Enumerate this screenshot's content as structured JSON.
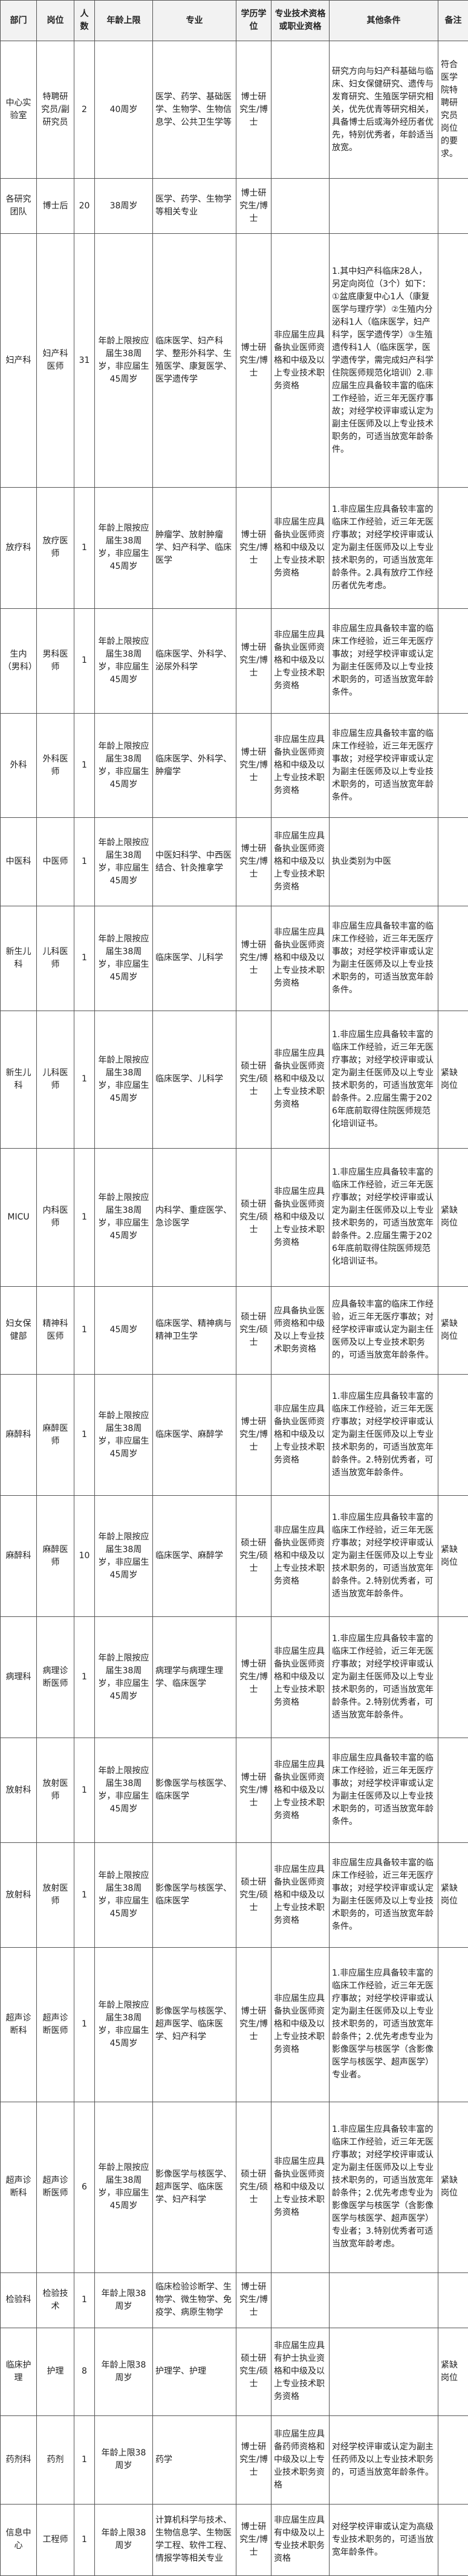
{
  "table": {
    "headers": [
      "部门",
      "岗位",
      "人数",
      "年龄上限",
      "专业",
      "学历学位",
      "专业技术资格或职业资格",
      "其他条件",
      "备注"
    ],
    "rows": [
      [
        "中心实验室",
        "特聘研究员/副研究员",
        "2",
        "40周岁",
        "医学、药学、基础医学、生物学、生物信息学、公共卫生学等",
        "博士研究生/博士",
        null,
        "研究方向与妇产科基础与临床、妇女保健研究、遗传与发育研究、生殖医学研究相关，优先优青等研究相关，具备博士后或海外经历者优先，特别优秀者，年龄适当放宽。",
        "符合医学院特聘研究员岗位的要求。"
      ],
      [
        "各研究团队",
        "博士后",
        "20",
        "38周岁",
        "医学、药学、生物学等相关专业",
        "博士研究生/博士",
        null,
        null,
        null
      ],
      [
        "妇产科",
        "妇产科医师",
        "31",
        "年龄上限按应届生38周岁，非应届生45周岁",
        "临床医学、妇产科学、整形外科学、生殖医学、康复医学、医学遗传学",
        "博士研究生/博士",
        "非应届生应具备执业医师资格和中级及以上专业技术职务资格",
        "1.其中妇产科临床28人，另定向岗位（3个）如下：①盆底康复中心1人（康复医学与理疗学）②生殖内分泌科1人（临床医学，妇产科学，医学遗传学）③生殖遗传科1人（临床医学，医学遗传学，需完成妇产科学住院医师规范化培训）2.非应届生应具备较丰富的临床工作经验，近三年无医疗事故；对经学校评审或认定为副主任医师及以上专业技术职务的，可适当放宽年龄条件。",
        null
      ],
      [
        "放疗科",
        "放疗医师",
        "1",
        "年龄上限按应届生38周岁，非应届生45周岁",
        "肿瘤学、放射肿瘤学、妇产科学、临床医学",
        "博士研究生/博士",
        "非应届生应具备执业医师资格和中级及以上专业技术职务资格",
        "1.非应届生应具备较丰富的临床工作经验，近三年无医疗事故；对经学校评审或认定为副主任医师及以上专业技术职务的，可适当放宽年龄条件。2.具有放疗工作经历者优先考虑。",
        null
      ],
      [
        "生内（男科）",
        "男科医师",
        "1",
        "年龄上限按应届生38周岁，非应届生45周岁",
        "临床医学、外科学、泌尿外科学",
        "博士研究生/博士",
        "非应届生应具备执业医师资格和中级及以上专业技术职务资格",
        "非应届生应具备较丰富的临床工作经验，近三年无医疗事故；对经学校评审或认定为副主任医师及以上专业技术职务的，可适当放宽年龄条件。",
        null
      ],
      [
        "外科",
        "外科医师",
        "1",
        "年龄上限按应届生38周岁，非应届生45周岁",
        "临床医学、外科学、肿瘤学",
        "博士研究生/博士",
        "非应届生应具备执业医师资格和中级及以上专业技术职务资格",
        "非应届生应具备较丰富的临床工作经验，近三年无医疗事故；对经学校评审或认定为副主任医师及以上专业技术职务的，可适当放宽年龄条件。",
        null
      ],
      [
        "中医科",
        "中医师",
        "1",
        "年龄上限按应届生38周岁，非应届生45周岁",
        "中医妇科学、中西医结合、针灸推拿学",
        "博士研究生/博士",
        "非应届生应具备执业医师资格和中级及以上专业技术职务资格",
        "执业类别为中医",
        null
      ],
      [
        "新生儿科",
        "儿科医师",
        "1",
        "年龄上限按应届生38周岁，非应届生45周岁",
        "临床医学、儿科学",
        "博士研究生/博士",
        "非应届生应具备执业医师资格和中级及以上专业技术职务资格",
        "非应届生应具备较丰富的临床工作经验，近三年无医疗事故；对经学校评审或认定为副主任医师及以上专业技术职务的，可适当放宽年龄条件。",
        null
      ],
      [
        "新生儿科",
        "儿科医师",
        "1",
        "年龄上限按应届生38周岁，非应届生45周岁",
        "临床医学、儿科学",
        "硕士研究生/硕士",
        "非应届生应具备执业医师资格和中级及以上专业技术职务资格",
        "1.非应届生应具备较丰富的临床工作经验，近三年无医疗事故；对经学校评审或认定为副主任医师及以上专业技术职务的，可适当放宽年龄条件。2.应届生需于2026年底前取得住院医师规范化培训证书。",
        "紧缺岗位"
      ],
      [
        "MICU",
        "内科医师",
        "1",
        "年龄上限按应届生38周岁，非应届生45周岁",
        "内科学、重症医学、急诊医学",
        "硕士研究生/硕士",
        "非应届生应具备执业医师资格和中级及以上专业技术职务资格",
        "1.非应届生应具备较丰富的临床工作经验，近三年无医疗事故；对经学校评审或认定为副主任医师及以上专业技术职务的，可适当放宽年龄条件。2.应届生需于2026年底前取得住院医师规范化培训证书。",
        "紧缺岗位"
      ],
      [
        "妇女保健部",
        "精神科医师",
        "1",
        "45周岁",
        "临床医学、精神病与精神卫生学",
        "硕士研究生/硕士",
        "应具备执业医师资格和中级及以上专业技术职务资格",
        "应具备较丰富的临床工作经验，近三年无医疗事故；对经学校评审或认定为副主任医师及以上专业技术职务的，可适当放宽年龄条件。",
        "紧缺岗位"
      ],
      [
        "麻醉科",
        "麻醉医师",
        "1",
        "年龄上限按应届生38周岁，非应届生45周岁",
        "临床医学、麻醉学",
        "博士研究生/博士",
        "非应届生应具备执业医师资格和中级及以上专业技术职务资格",
        "1.非应届生应具备较丰富的临床工作经验，近三年无医疗事故；对经学校评审或认定为副主任医师及以上专业技术职务的，可适当放宽年龄条件。2.特别优秀者，可适当放宽年龄条件。",
        null
      ],
      [
        "麻醉科",
        "麻醉医师",
        "10",
        "年龄上限按应届生38周岁，非应届生45周岁",
        "临床医学、麻醉学",
        "硕士研究生/硕士",
        "非应届生应具备执业医师资格和中级及以上专业技术职务资格",
        "1.非应届生应具备较丰富的临床工作经验，近三年无医疗事故；对经学校评审或认定为副主任医师及以上专业技术职务的，可适当放宽年龄条件。2.特别优秀者，可适当放宽年龄条件。",
        "紧缺岗位"
      ],
      [
        "病理科",
        "病理诊断医师",
        "1",
        "年龄上限按应届生38周岁，非应届生45周岁",
        "病理学与病理生理学、临床医学",
        "博士研究生/博士",
        "非应届生应具备执业医师资格和中级及以上专业技术职务资格",
        "1.非应届生应具备较丰富的临床工作经验，近三年无医疗事故；对经学校评审或认定为副主任医师及以上专业技术职务的，可适当放宽年龄条件。2.特别优秀者，可适当放宽年龄条件。",
        null
      ],
      [
        "放射科",
        "放射医师",
        "1",
        "年龄上限按应届生38周岁，非应届生45周岁",
        "影像医学与核医学、临床医学",
        "博士研究生/博士",
        "非应届生应具备执业医师资格和中级及以上专业技术职务资格",
        "非应届生应具备较丰富的临床工作经验，近三年无医疗事故；对经学校评审或认定为副主任医师及以上专业技术职务的，可适当放宽年龄条件。",
        null
      ],
      [
        "放射科",
        "放射医师",
        "1",
        "年龄上限按应届生38周岁，非应届生45周岁",
        "影像医学与核医学、临床医学",
        "硕士研究生/硕士",
        "非应届生应具备执业医师资格和中级及以上专业技术职务资格",
        "非应届生应具备较丰富的临床工作经验，近三年无医疗事故；对经学校评审或认定为副主任医师及以上专业技术职务的，可适当放宽年龄条件。",
        "紧缺岗位"
      ],
      [
        "超声诊断科",
        "超声诊断医师",
        "1",
        "年龄上限按应届生38周岁，非应届生45周岁",
        "影像医学与核医学、超声医学、临床医学、妇产科学",
        "博士研究生/博士",
        "非应届生应具备执业医师资格和中级及以上专业技术职务资格",
        "1.非应届生应具备较丰富的临床工作经验，近三年无医疗事故；对经学校评审或认定为副主任医师及以上专业技术职务的，可适当放宽年龄条件；2.优先考虑专业为影像医学与核医学（含影像医学与核医学、超声医学）专业者。",
        null
      ],
      [
        "超声诊断科",
        "超声诊断医师",
        "6",
        "年龄上限按应届生38周岁，非应届生45周岁",
        "影像医学与核医学、超声医学、临床医学、妇产科学",
        "硕士研究生/硕士",
        "非应届生应具备执业医师资格和中级及以上专业技术职务资格",
        "1.非应届生应具备较丰富的临床工作经验，近三年无医疗事故；对经学校评审或认定为副主任医师及以上专业技术职务的，可适当放宽年龄条件；2.优先考虑专业为影像医学与核医学（含影像医学与核医学、超声医学）专业者；3.特别优秀者可适当放宽年龄考虑。",
        "紧缺岗位"
      ],
      [
        "检验科",
        "检验技术",
        "1",
        "年龄上限38周岁",
        "临床检验诊断学、生物学、微生物学、免疫学、病原生物学",
        "博士研究生/博士",
        null,
        null,
        null
      ],
      [
        "临床护理",
        "护理",
        "8",
        "年龄上限38周岁",
        "护理学、护理",
        "硕士研究生/硕士",
        "非应届生应具有护士执业资格和中级及以上专业技术职务资格",
        null,
        "紧缺岗位"
      ],
      [
        "药剂科",
        "药剂",
        "1",
        "年龄上限38周岁",
        "药学",
        "博士研究生/博士",
        "非应届生应具备药师资格和中级及以上专业技术职务资格",
        "对经学校评审或认定为副主任药师及以上专业技术职务的，可适当放宽年龄条件。",
        null
      ],
      [
        "信息中心",
        "工程师",
        "1",
        "年龄上限38周岁",
        "计算机科学与技术、生物信息学、生物医学工程、软件工程、情报学等相关专业",
        "博士研究生/博士",
        "非应届生应具有中级及以上专业技术职务资格",
        "对经学校评审或认定为高级专业技术职务的，可适当放宽年龄条件。",
        null
      ]
    ]
  }
}
